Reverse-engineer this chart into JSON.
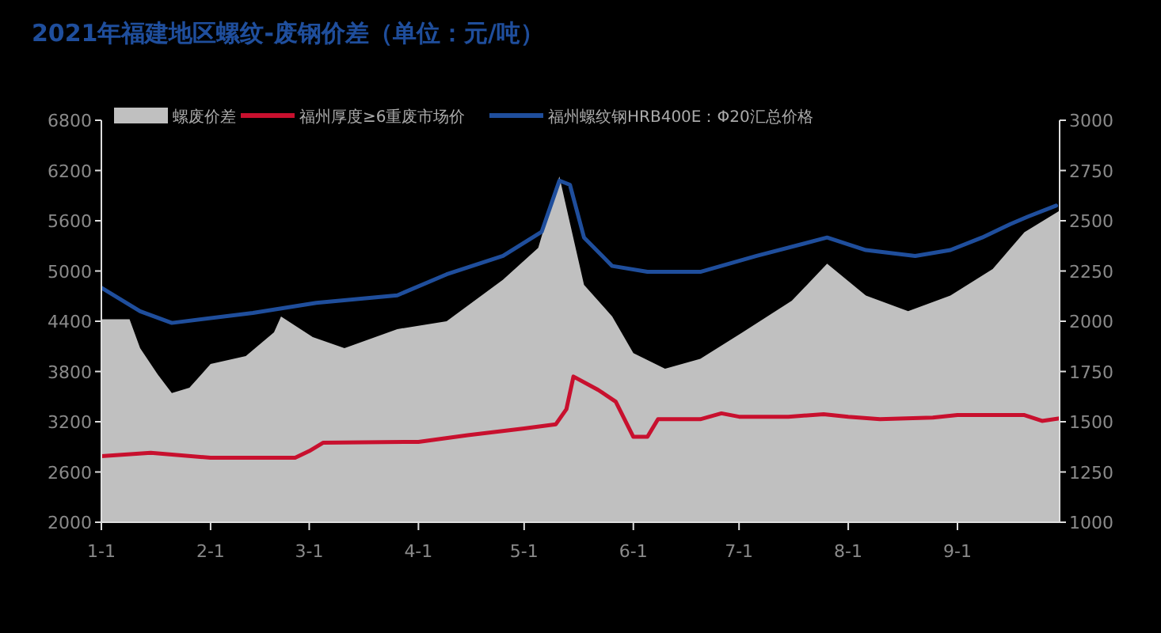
{
  "chart_data": {
    "type": "line",
    "title": "2021年福建地区螺纹-废钢价差（单位：元/吨）",
    "xlim": [
      "2021-01-01",
      "2021-09-30"
    ],
    "xticks": [
      {
        "value": "2021-01-01",
        "label": "1-1"
      },
      {
        "value": "2021-02-01",
        "label": "2-1"
      },
      {
        "value": "2021-03-01",
        "label": "3-1"
      },
      {
        "value": "2021-04-01",
        "label": "4-1"
      },
      {
        "value": "2021-05-01",
        "label": "5-1"
      },
      {
        "value": "2021-06-01",
        "label": "6-1"
      },
      {
        "value": "2021-07-01",
        "label": "7-1"
      },
      {
        "value": "2021-08-01",
        "label": "8-1"
      },
      {
        "value": "2021-09-01",
        "label": "9-1"
      }
    ],
    "ylim": [
      2000,
      6800
    ],
    "yticks": [
      2000,
      2600,
      3200,
      3800,
      4400,
      5000,
      5600,
      6200,
      6800
    ],
    "y2lim": [
      1000,
      3000
    ],
    "y2ticks": [
      1000,
      1250,
      1500,
      1750,
      2000,
      2250,
      2500,
      2750,
      3000
    ],
    "legend": "top",
    "grid": false,
    "marker": "none",
    "line_style": "solid",
    "series": [
      {
        "name": "螺废价差",
        "type": "area",
        "axis": "y2",
        "color": "#c0c0c0",
        "x": [
          "2021-01-01",
          "2021-01-09",
          "2021-01-12",
          "2021-01-17",
          "2021-01-21",
          "2021-01-26",
          "2021-02-01",
          "2021-02-11",
          "2021-02-19",
          "2021-02-21",
          "2021-03-02",
          "2021-03-11",
          "2021-03-26",
          "2021-04-09",
          "2021-04-25",
          "2021-05-05",
          "2021-05-11",
          "2021-05-18",
          "2021-05-26",
          "2021-06-01",
          "2021-06-10",
          "2021-06-20",
          "2021-07-02",
          "2021-07-16",
          "2021-07-26",
          "2021-08-06",
          "2021-08-18",
          "2021-08-30",
          "2021-09-11",
          "2021-09-20",
          "2021-09-30"
        ],
        "values": [
          2010,
          2010,
          1866,
          1735,
          1643,
          1669,
          1787,
          1827,
          1945,
          2024,
          1921,
          1866,
          1961,
          2000,
          2207,
          2365,
          2720,
          2181,
          2024,
          1842,
          1764,
          1813,
          1945,
          2102,
          2286,
          2128,
          2050,
          2128,
          2260,
          2443,
          2550
        ]
      },
      {
        "name": "福州厚度≥6重废市场价",
        "color": "#c8102e",
        "x": [
          "2021-01-01",
          "2021-01-15",
          "2021-02-01",
          "2021-02-25",
          "2021-03-01",
          "2021-03-05",
          "2021-04-01",
          "2021-04-15",
          "2021-05-01",
          "2021-05-10",
          "2021-05-13",
          "2021-05-15",
          "2021-05-22",
          "2021-05-27",
          "2021-06-01",
          "2021-06-05",
          "2021-06-08",
          "2021-06-20",
          "2021-06-26",
          "2021-07-01",
          "2021-07-15",
          "2021-07-25",
          "2021-08-01",
          "2021-08-10",
          "2021-08-25",
          "2021-09-01",
          "2021-09-20",
          "2021-09-25",
          "2021-09-30"
        ],
        "values": [
          2790,
          2830,
          2770,
          2770,
          2850,
          2950,
          2960,
          3040,
          3120,
          3170,
          3350,
          3740,
          3580,
          3440,
          3020,
          3020,
          3230,
          3230,
          3300,
          3260,
          3260,
          3290,
          3260,
          3230,
          3250,
          3280,
          3280,
          3210,
          3240
        ]
      },
      {
        "name": "福州螺纹钢HRB400E：Φ20汇总价格",
        "color": "#1f4e9c",
        "x": [
          "2021-01-01",
          "2021-01-12",
          "2021-01-21",
          "2021-02-13",
          "2021-03-03",
          "2021-03-26",
          "2021-04-09",
          "2021-04-25",
          "2021-05-06",
          "2021-05-11",
          "2021-05-14",
          "2021-05-18",
          "2021-05-26",
          "2021-06-05",
          "2021-06-20",
          "2021-07-06",
          "2021-07-26",
          "2021-08-06",
          "2021-08-20",
          "2021-08-30",
          "2021-09-08",
          "2021-09-16",
          "2021-09-21",
          "2021-09-29"
        ],
        "values": [
          4800,
          4520,
          4380,
          4500,
          4620,
          4710,
          4960,
          5180,
          5470,
          6080,
          6030,
          5400,
          5060,
          4990,
          4990,
          5180,
          5400,
          5250,
          5180,
          5250,
          5400,
          5560,
          5650,
          5780
        ]
      }
    ]
  }
}
